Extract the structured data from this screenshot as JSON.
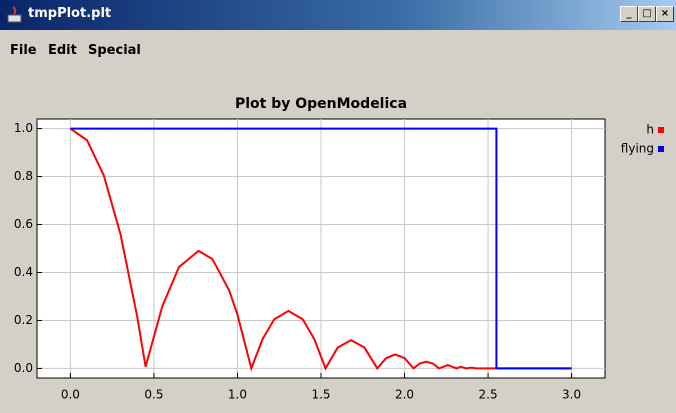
{
  "window": {
    "title": "tmpPlot.plt"
  },
  "menu": [
    "File",
    "Edit",
    "Special"
  ],
  "chart_data": {
    "type": "line",
    "title": "Plot by OpenModelica",
    "xlim": [
      -0.2,
      3.2
    ],
    "ylim": [
      -0.04,
      1.04
    ],
    "xticks": [
      {
        "value": 0,
        "label": "0.0"
      },
      0.5,
      {
        "value": 1,
        "label": "1.0"
      },
      1.5,
      {
        "value": 2,
        "label": "2.0"
      },
      2.5,
      {
        "value": 3,
        "label": "3.0"
      }
    ],
    "yticks": [
      {
        "value": 0,
        "label": "0.0"
      },
      0.2,
      0.4,
      0.6,
      0.8,
      {
        "value": 1,
        "label": "1.0"
      }
    ],
    "grid": true,
    "legend": "right",
    "series": [
      {
        "name": "h",
        "color": "#ff0000",
        "x": [
          0,
          0.1,
          0.2,
          0.3,
          0.4,
          0.45,
          0.55,
          0.65,
          0.767,
          0.85,
          0.95,
          1.0,
          1.083,
          1.15,
          1.22,
          1.305,
          1.39,
          1.46,
          1.527,
          1.6,
          1.68,
          1.76,
          1.837,
          1.89,
          1.945,
          2.0,
          2.054,
          2.09,
          2.13,
          2.17,
          2.206,
          2.26,
          2.312,
          2.336,
          2.37,
          2.4,
          2.43,
          3.0
        ],
        "values": [
          1,
          0.951,
          0.804,
          0.559,
          0.215,
          0.007,
          0.259,
          0.423,
          0.49,
          0.456,
          0.326,
          0.224,
          0,
          0.122,
          0.205,
          0.24,
          0.205,
          0.122,
          0,
          0.087,
          0.118,
          0.087,
          0,
          0.043,
          0.058,
          0.043,
          0,
          0.02,
          0.028,
          0.02,
          0,
          0.014,
          0,
          0.007,
          0,
          0.003,
          0,
          0
        ]
      },
      {
        "name": "flying",
        "color": "#0000ff",
        "x": [
          0,
          2.55,
          2.55,
          3.0
        ],
        "values": [
          1,
          1,
          0,
          0
        ]
      }
    ]
  }
}
